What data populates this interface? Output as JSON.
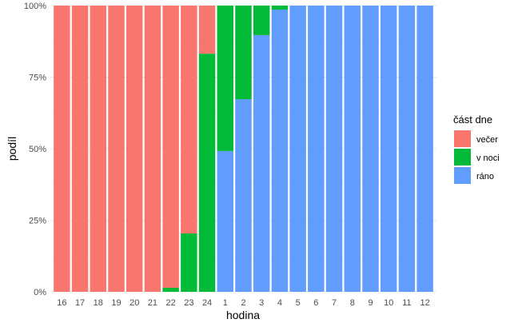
{
  "chart_data": {
    "type": "bar",
    "stacked": "percent",
    "title": "",
    "xlabel": "hodina",
    "ylabel": "podíl",
    "ylim": [
      0,
      100
    ],
    "yticks": [
      "0%",
      "25%",
      "50%",
      "75%",
      "100%"
    ],
    "categories": [
      "16",
      "17",
      "18",
      "19",
      "20",
      "21",
      "22",
      "23",
      "24",
      "1",
      "2",
      "3",
      "4",
      "5",
      "6",
      "7",
      "8",
      "9",
      "10",
      "11",
      "12"
    ],
    "series": [
      {
        "name": "večer",
        "color": "#F8766D",
        "values": [
          100,
          100,
          100,
          100,
          100,
          100,
          98.6,
          79.6,
          16.8,
          0,
          0,
          0,
          0,
          0,
          0,
          0,
          0,
          0,
          0,
          0,
          0
        ]
      },
      {
        "name": "v noci",
        "color": "#00BA38",
        "values": [
          0,
          0,
          0,
          0,
          0,
          0,
          1.4,
          20.4,
          83.2,
          50.8,
          32.7,
          10.3,
          1.4,
          0,
          0,
          0,
          0,
          0,
          0,
          0,
          0
        ]
      },
      {
        "name": "ráno",
        "color": "#619CFF",
        "values": [
          0,
          0,
          0,
          0,
          0,
          0,
          0,
          0,
          0,
          49.2,
          67.3,
          89.7,
          98.6,
          100,
          100,
          100,
          100,
          100,
          100,
          100,
          100
        ]
      }
    ],
    "grid": true,
    "legend": {
      "title": "část dne",
      "position": "right"
    }
  }
}
